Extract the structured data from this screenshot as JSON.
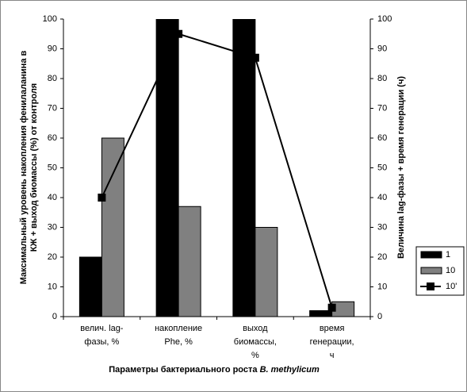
{
  "chart_data": {
    "type": "bar",
    "categories": [
      [
        "велич. lag-",
        "фазы, %"
      ],
      [
        "накопление",
        "Phe, %"
      ],
      [
        "выход",
        "биомассы,",
        "%"
      ],
      [
        "время",
        "генерации,",
        "ч"
      ]
    ],
    "series": [
      {
        "name": "1",
        "color": "#000000",
        "values": [
          20,
          100,
          100,
          2
        ]
      },
      {
        "name": "10",
        "color": "#808080",
        "values": [
          60,
          37,
          30,
          5
        ]
      },
      {
        "name": "10'",
        "color": "#000000",
        "type": "line",
        "axis": "y2",
        "values": [
          40,
          95,
          87,
          3
        ]
      }
    ],
    "ylim": [
      0,
      100
    ],
    "yticks": [
      0,
      10,
      20,
      30,
      40,
      50,
      60,
      70,
      80,
      90,
      100
    ],
    "y2lim": [
      0,
      100
    ],
    "y2ticks": [
      0,
      10,
      20,
      30,
      40,
      50,
      60,
      70,
      80,
      90,
      100
    ],
    "ylabel": [
      "Максимальный уровень накопления фенилаланина в",
      "КЖ + выход биомассы (%) от контроля"
    ],
    "y2label": "Величина lag-фазы + время генерации (ч)",
    "xlabel": [
      "Параметры бактериального роста ",
      "B. methylicum"
    ],
    "legend": "right"
  }
}
